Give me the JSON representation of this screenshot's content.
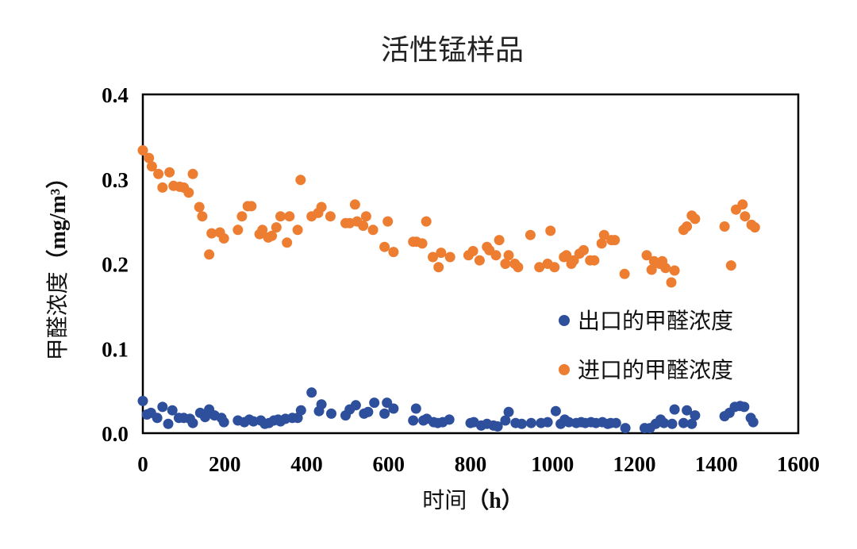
{
  "chart_data": {
    "type": "scatter",
    "title": "活性锰样品",
    "xlabel": "时间（h）",
    "xlabel_main": "时间",
    "xlabel_unit": "（h）",
    "ylabel": "甲醛浓度（mg/m³）",
    "ylabel_main": "甲醛浓度",
    "ylabel_unit": "（mg/m³）",
    "xlim": [
      0,
      1600
    ],
    "ylim": [
      0,
      0.4
    ],
    "xticks": [
      "0",
      "200",
      "400",
      "600",
      "800",
      "1000",
      "1200",
      "1400",
      "1600"
    ],
    "yticks": [
      "0.0",
      "0.1",
      "0.2",
      "0.3",
      "0.4"
    ],
    "grid": false,
    "legend_position": "right",
    "series": [
      {
        "name": "出口的甲醛浓度",
        "color": "#2E4F9C",
        "points": [
          [
            0,
            0.038
          ],
          [
            10,
            0.022
          ],
          [
            20,
            0.024
          ],
          [
            35,
            0.018
          ],
          [
            48,
            0.031
          ],
          [
            62,
            0.011
          ],
          [
            72,
            0.027
          ],
          [
            88,
            0.018
          ],
          [
            100,
            0.018
          ],
          [
            115,
            0.017
          ],
          [
            122,
            0.012
          ],
          [
            140,
            0.024
          ],
          [
            152,
            0.019
          ],
          [
            162,
            0.028
          ],
          [
            175,
            0.021
          ],
          [
            192,
            0.018
          ],
          [
            198,
            0.013
          ],
          [
            232,
            0.015
          ],
          [
            248,
            0.013
          ],
          [
            260,
            0.016
          ],
          [
            270,
            0.014
          ],
          [
            288,
            0.015
          ],
          [
            298,
            0.011
          ],
          [
            308,
            0.012
          ],
          [
            320,
            0.015
          ],
          [
            330,
            0.016
          ],
          [
            336,
            0.014
          ],
          [
            348,
            0.017
          ],
          [
            365,
            0.018
          ],
          [
            378,
            0.018
          ],
          [
            386,
            0.027
          ],
          [
            412,
            0.048
          ],
          [
            430,
            0.026
          ],
          [
            436,
            0.034
          ],
          [
            460,
            0.023
          ],
          [
            495,
            0.021
          ],
          [
            505,
            0.028
          ],
          [
            520,
            0.033
          ],
          [
            540,
            0.023
          ],
          [
            550,
            0.025
          ],
          [
            565,
            0.036
          ],
          [
            590,
            0.023
          ],
          [
            596,
            0.036
          ],
          [
            612,
            0.029
          ],
          [
            660,
            0.015
          ],
          [
            667,
            0.029
          ],
          [
            685,
            0.015
          ],
          [
            693,
            0.017
          ],
          [
            710,
            0.013
          ],
          [
            720,
            0.012
          ],
          [
            732,
            0.013
          ],
          [
            748,
            0.016
          ],
          [
            800,
            0.012
          ],
          [
            808,
            0.013
          ],
          [
            826,
            0.009
          ],
          [
            840,
            0.011
          ],
          [
            856,
            0.009
          ],
          [
            866,
            0.008
          ],
          [
            885,
            0.015
          ],
          [
            893,
            0.025
          ],
          [
            910,
            0.012
          ],
          [
            925,
            0.011
          ],
          [
            948,
            0.012
          ],
          [
            972,
            0.012
          ],
          [
            988,
            0.013
          ],
          [
            1008,
            0.026
          ],
          [
            1020,
            0.011
          ],
          [
            1030,
            0.016
          ],
          [
            1040,
            0.013
          ],
          [
            1058,
            0.012
          ],
          [
            1070,
            0.013
          ],
          [
            1080,
            0.012
          ],
          [
            1094,
            0.013
          ],
          [
            1106,
            0.012
          ],
          [
            1122,
            0.013
          ],
          [
            1135,
            0.011
          ],
          [
            1142,
            0.012
          ],
          [
            1155,
            0.012
          ],
          [
            1178,
            0.006
          ],
          [
            1225,
            0.006
          ],
          [
            1238,
            0.006
          ],
          [
            1252,
            0.011
          ],
          [
            1264,
            0.016
          ],
          [
            1272,
            0.012
          ],
          [
            1292,
            0.011
          ],
          [
            1298,
            0.028
          ],
          [
            1320,
            0.012
          ],
          [
            1328,
            0.027
          ],
          [
            1340,
            0.011
          ],
          [
            1348,
            0.021
          ],
          [
            1420,
            0.02
          ],
          [
            1432,
            0.024
          ],
          [
            1445,
            0.031
          ],
          [
            1458,
            0.032
          ],
          [
            1468,
            0.031
          ],
          [
            1484,
            0.018
          ],
          [
            1490,
            0.013
          ]
        ]
      },
      {
        "name": "进口的甲醛浓度",
        "color": "#ED7D31",
        "points": [
          [
            0,
            0.334
          ],
          [
            15,
            0.325
          ],
          [
            22,
            0.315
          ],
          [
            38,
            0.306
          ],
          [
            48,
            0.29
          ],
          [
            65,
            0.308
          ],
          [
            75,
            0.292
          ],
          [
            90,
            0.291
          ],
          [
            100,
            0.29
          ],
          [
            112,
            0.284
          ],
          [
            122,
            0.306
          ],
          [
            138,
            0.267
          ],
          [
            145,
            0.256
          ],
          [
            162,
            0.211
          ],
          [
            168,
            0.236
          ],
          [
            188,
            0.237
          ],
          [
            198,
            0.23
          ],
          [
            232,
            0.24
          ],
          [
            242,
            0.256
          ],
          [
            256,
            0.268
          ],
          [
            265,
            0.268
          ],
          [
            285,
            0.235
          ],
          [
            292,
            0.24
          ],
          [
            306,
            0.231
          ],
          [
            315,
            0.233
          ],
          [
            326,
            0.243
          ],
          [
            336,
            0.256
          ],
          [
            352,
            0.225
          ],
          [
            358,
            0.256
          ],
          [
            378,
            0.24
          ],
          [
            385,
            0.299
          ],
          [
            412,
            0.256
          ],
          [
            428,
            0.26
          ],
          [
            436,
            0.267
          ],
          [
            458,
            0.256
          ],
          [
            495,
            0.248
          ],
          [
            505,
            0.248
          ],
          [
            518,
            0.27
          ],
          [
            523,
            0.25
          ],
          [
            538,
            0.245
          ],
          [
            545,
            0.256
          ],
          [
            562,
            0.24
          ],
          [
            590,
            0.22
          ],
          [
            598,
            0.25
          ],
          [
            612,
            0.214
          ],
          [
            660,
            0.226
          ],
          [
            668,
            0.226
          ],
          [
            682,
            0.224
          ],
          [
            692,
            0.25
          ],
          [
            708,
            0.208
          ],
          [
            722,
            0.196
          ],
          [
            728,
            0.213
          ],
          [
            750,
            0.208
          ],
          [
            795,
            0.21
          ],
          [
            806,
            0.215
          ],
          [
            822,
            0.204
          ],
          [
            840,
            0.22
          ],
          [
            846,
            0.216
          ],
          [
            862,
            0.21
          ],
          [
            870,
            0.228
          ],
          [
            885,
            0.2
          ],
          [
            893,
            0.21
          ],
          [
            908,
            0.2
          ],
          [
            916,
            0.196
          ],
          [
            946,
            0.234
          ],
          [
            968,
            0.196
          ],
          [
            988,
            0.2
          ],
          [
            995,
            0.239
          ],
          [
            1005,
            0.196
          ],
          [
            1028,
            0.208
          ],
          [
            1034,
            0.21
          ],
          [
            1046,
            0.2
          ],
          [
            1052,
            0.204
          ],
          [
            1066,
            0.212
          ],
          [
            1076,
            0.216
          ],
          [
            1092,
            0.204
          ],
          [
            1102,
            0.204
          ],
          [
            1120,
            0.224
          ],
          [
            1126,
            0.234
          ],
          [
            1144,
            0.228
          ],
          [
            1152,
            0.228
          ],
          [
            1176,
            0.188
          ],
          [
            1230,
            0.21
          ],
          [
            1242,
            0.193
          ],
          [
            1248,
            0.203
          ],
          [
            1262,
            0.2
          ],
          [
            1268,
            0.203
          ],
          [
            1276,
            0.195
          ],
          [
            1290,
            0.178
          ],
          [
            1298,
            0.192
          ],
          [
            1320,
            0.24
          ],
          [
            1328,
            0.244
          ],
          [
            1340,
            0.257
          ],
          [
            1348,
            0.253
          ],
          [
            1420,
            0.244
          ],
          [
            1436,
            0.198
          ],
          [
            1448,
            0.264
          ],
          [
            1464,
            0.27
          ],
          [
            1470,
            0.256
          ],
          [
            1486,
            0.246
          ],
          [
            1494,
            0.243
          ]
        ]
      }
    ]
  }
}
